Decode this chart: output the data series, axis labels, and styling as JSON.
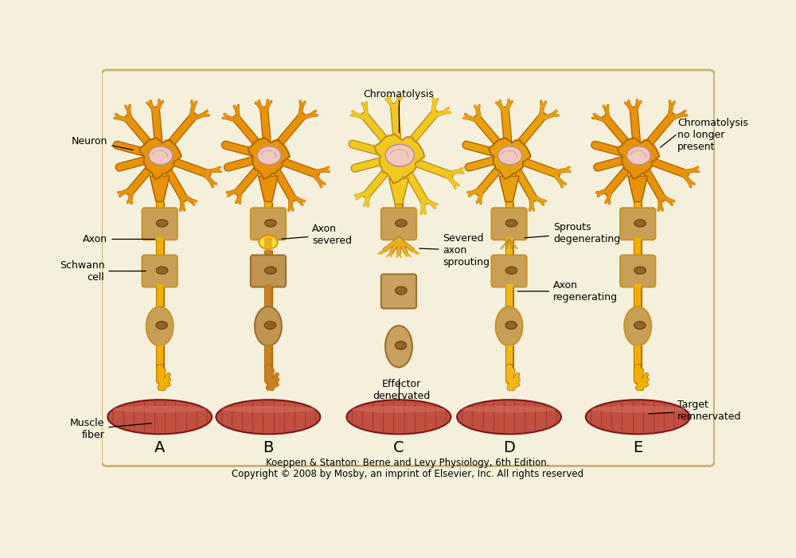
{
  "background_color": "#f5f0dc",
  "border_color": "#c8b070",
  "footer_line1": "Koeppen & Stanton: Berne and Levy Physiology, 6th Edition.",
  "footer_line2": "Copyright © 2008 by Mosby, an imprint of Elsevier, Inc. All rights reserved",
  "panel_labels": [
    "A",
    "B",
    "C",
    "D",
    "E"
  ],
  "neuron_color": "#e8920a",
  "neuron_border": "#b06800",
  "neuron_color_swollen": "#f0c820",
  "nucleus_color": "#f0c8c0",
  "nucleus_border": "#c09090",
  "axon_color": "#f0b000",
  "axon_bright": "#ffe040",
  "schwann_outer": "#c8922a",
  "schwann_fill": "#c8a055",
  "schwann_nucleus": "#8b5a1a",
  "muscle_color": "#c05040",
  "muscle_highlight": "#d87060",
  "muscle_stripe": "#a03030",
  "annotation_color": "#111111",
  "footer_fontsize": 8.5,
  "panel_label_fontsize": 14
}
